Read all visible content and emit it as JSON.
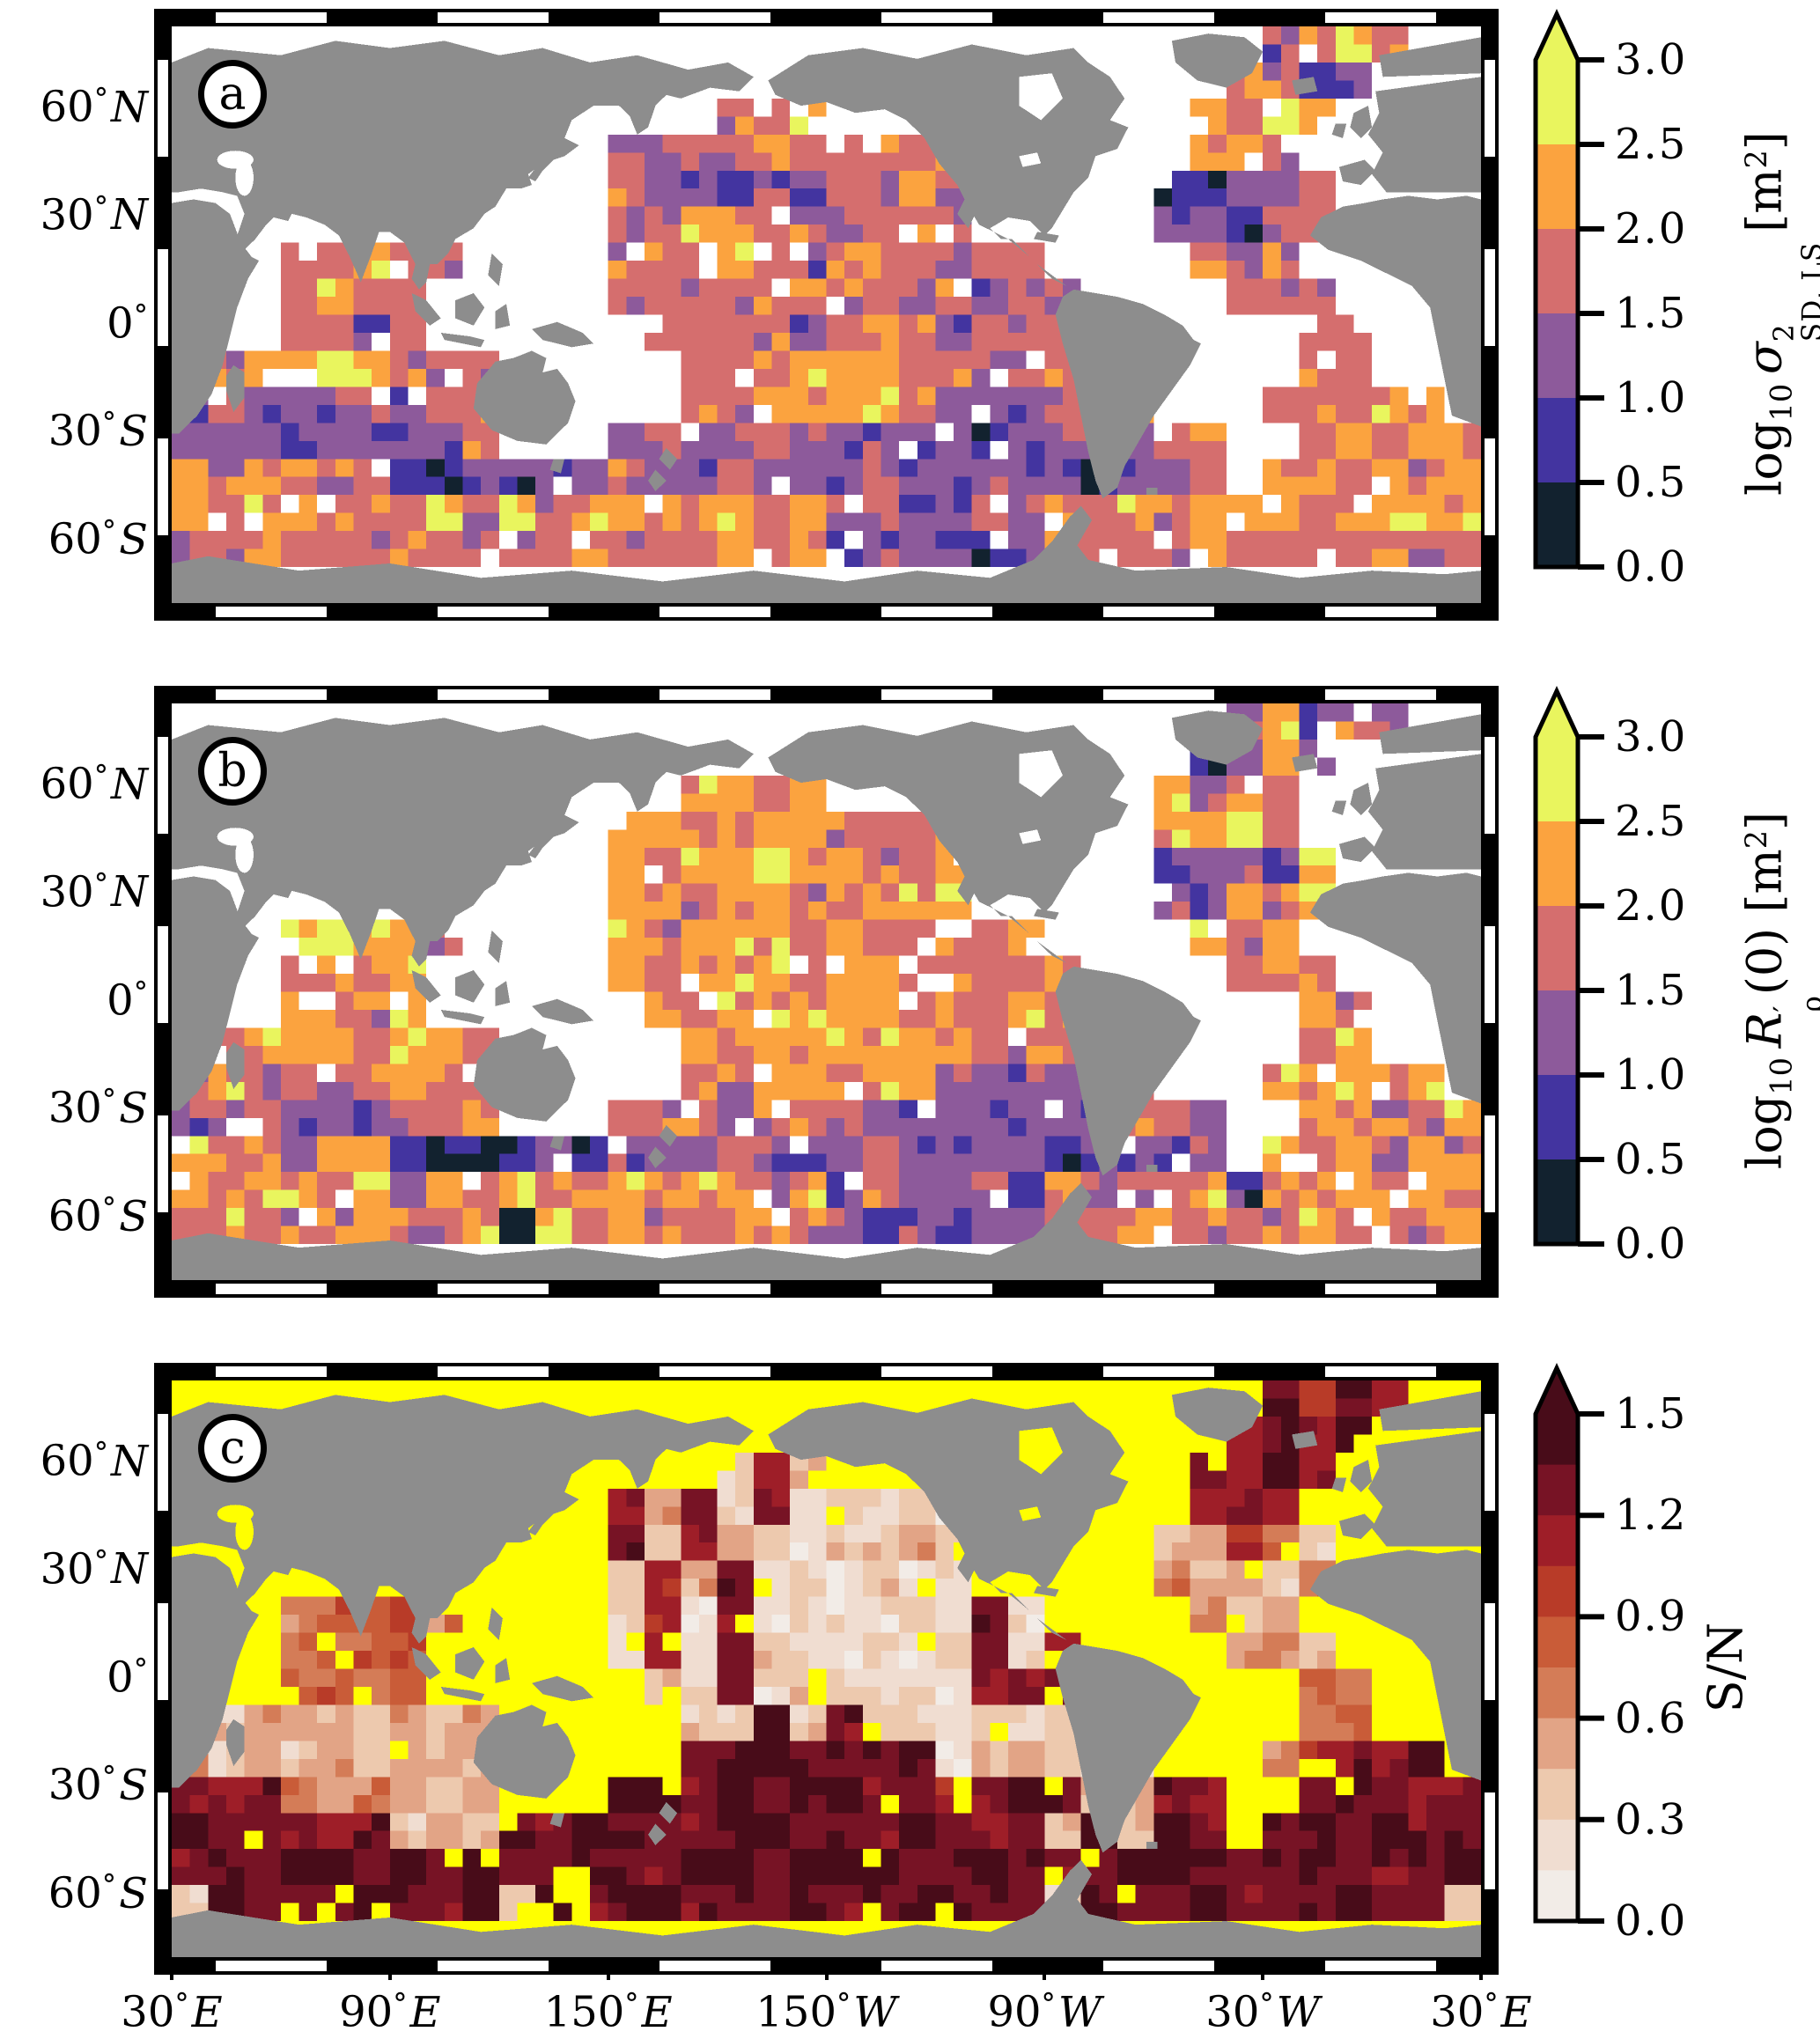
{
  "figure": {
    "background": "#ffffff",
    "land_color": "#8d8d8d",
    "frame_color": "#000000"
  },
  "axis": {
    "lat_ticks": [
      {
        "num": "60",
        "hemi": "N",
        "lat": 60
      },
      {
        "num": "30",
        "hemi": "N",
        "lat": 30
      },
      {
        "num": "0",
        "hemi": "",
        "lat": 0
      },
      {
        "num": "30",
        "hemi": "S",
        "lat": -30
      },
      {
        "num": "60",
        "hemi": "S",
        "lat": -60
      }
    ],
    "lon_ticks": [
      {
        "num": "30",
        "hemi": "E",
        "lon": 30
      },
      {
        "num": "90",
        "hemi": "E",
        "lon": 90
      },
      {
        "num": "150",
        "hemi": "E",
        "lon": 150
      },
      {
        "num": "150",
        "hemi": "W",
        "lon": 210
      },
      {
        "num": "90",
        "hemi": "W",
        "lon": 270
      },
      {
        "num": "30",
        "hemi": "W",
        "lon": 330
      },
      {
        "num": "30",
        "hemi": "E",
        "lon": 390
      }
    ]
  },
  "chart_data": {
    "type": "heatmap",
    "projection": "equirectangular world map, Pacific-centered, lon 30E-390E, lat 80N-80S",
    "cell_size_deg": 10,
    "grid_origin": {
      "lon": 30,
      "lat": 80
    },
    "panels": [
      {
        "label": "a",
        "ocean_color": "#ffffff",
        "colorbar": {
          "title_tokens": [
            [
              "rm",
              "log"
            ],
            [
              "sub",
              "10"
            ],
            [
              "it",
              " σ"
            ],
            [
              "stk",
              "2",
              "SD, LS"
            ],
            [
              "rm",
              " ["
            ],
            [
              "rm",
              "m"
            ],
            [
              "sup",
              "2"
            ],
            [
              "rm",
              "]"
            ]
          ],
          "ticks": [
            "3.0",
            "2.5",
            "2.0",
            "1.5",
            "1.0",
            "0.5",
            "0.0"
          ],
          "vmin": 0.0,
          "vmax": 3.0,
          "extend": "max",
          "bounds": [
            0.0,
            0.5,
            1.0,
            1.5,
            2.0,
            2.5,
            3.0
          ],
          "palette": [
            "#12222f",
            "#4334a0",
            "#8d5a9b",
            "#d56e6e",
            "#fba33f",
            "#e9f55e"
          ]
        },
        "grid": [
          "..............................2353..",
          ".............................4312...",
          "...............334..........4354....",
          "............3233433334......443.....",
          "............3221223343.....11223....",
          "............3344332333.....22133....",
          "...33433....333432333233....323.....",
          "...3433.....3333343333233....333....",
          "...3323......333323432333......33...",
          ".34454333.....3334443323333....33...",
          "232223233.....3344443222333...33343.",
          "222122223...23223222221223233..34343",
          "43433311212232232223222221223.443434",
          "434434343534434434232232434344434444",
          "334333433334333433122212333343333433",
          "...................................."
        ]
      },
      {
        "label": "b",
        "ocean_color": "#ffffff",
        "colorbar": {
          "title_tokens": [
            [
              "rm",
              "log"
            ],
            [
              "sub",
              "10"
            ],
            [
              "it",
              " R"
            ],
            [
              "stk",
              "′",
              "ρ"
            ],
            [
              "rm",
              "(0) ["
            ],
            [
              "rm",
              "m"
            ],
            [
              "sup",
              "2"
            ],
            [
              "rm",
              "]"
            ]
          ],
          "ticks": [
            "3.0",
            "2.5",
            "2.0",
            "1.5",
            "1.0",
            "0.5",
            "0.0"
          ],
          "vmin": 0.0,
          "vmax": 3.0,
          "extend": "max",
          "bounds": [
            0.0,
            0.5,
            1.0,
            1.5,
            2.0,
            2.5,
            3.0
          ],
          "palette": [
            "#12222f",
            "#4334a0",
            "#8d5a9b",
            "#d56e6e",
            "#fba33f",
            "#e9f55e"
          ]
        },
        "grid": [
          ".............................24232..",
          "............................1242....",
          "..............4434.........4243.....",
          "............4434443334.....4453.....",
          "............4344544334.....12215....",
          "............4434433444.....22434....",
          "...45443....434443433434....434.....",
          "...3434.....4344434434334....343....",
          "...4334......434444434343......43...",
          ".34443443.....4344444433333....34...",
          "343333433.....3344444222233...43434.",
          "223222334...33323332222222332..43334",
          "43424410012122232223222212212.434243",
          "434434243534434424132231423341434344",
          "343334334043433343212122334333343334",
          "...................................."
        ]
      },
      {
        "label": "c",
        "ocean_color": "#ffff00",
        "colorbar": {
          "title_tokens": [
            [
              "rm",
              "S/N"
            ]
          ],
          "ticks": [
            "1.5",
            "1.2",
            "0.9",
            "0.6",
            "0.3",
            "0.0"
          ],
          "vmin": 0.0,
          "vmax": 1.5,
          "extend": "max",
          "bounds": [
            0.0,
            0.15,
            0.3,
            0.45,
            0.6,
            0.75,
            0.9,
            1.05,
            1.2,
            1.35,
            1.5
          ],
          "palette": [
            "#f2ece7",
            "#f0ddd1",
            "#edc9ae",
            "#e2a486",
            "#d47c57",
            "#c95c38",
            "#b83b28",
            "#9e1e28",
            "#771325",
            "#480c19"
          ]
        },
        "grid": [
          "..............................8687..",
          ".............................7879...",
          "...............273..........8797....",
          "............7382812121......787.....",
          "............8273212232.....23642....",
          "............2738121211.....42324....",
          "...45564....271812112181....423.....",
          "...5456.....1718211212817....342....",
          "...4545......218122121788......54...",
          ".23332323.....2292822121222....45...",
          "423232333.....8998889123221...47879.",
          "878434323...99898998878992387..89878",
          "98887823298998899888987829298.898988",
          "898998989889889989998898889998898889",
          "298889889298998889889988298898889882",
          "...................................."
        ]
      }
    ]
  }
}
